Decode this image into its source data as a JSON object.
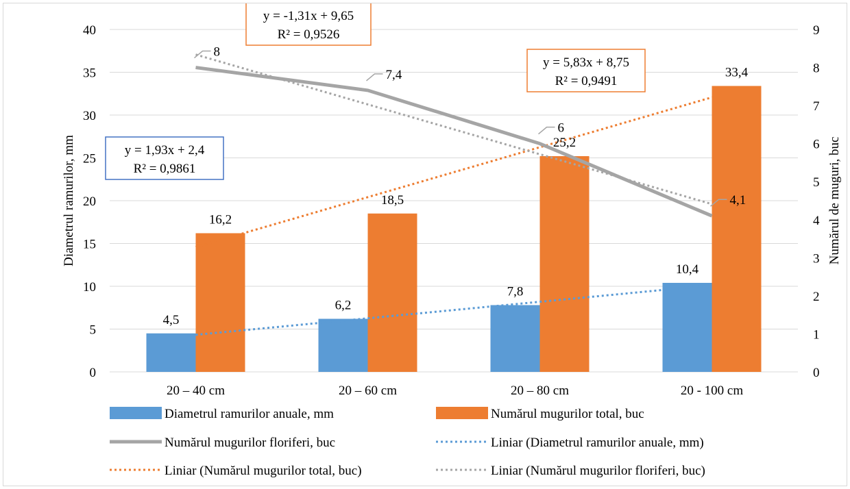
{
  "chart_data": {
    "type": "bar",
    "title": "",
    "categories": [
      "20 – 40 cm",
      "20 – 60 cm",
      "20 – 80 cm",
      "20 - 100 cm"
    ],
    "ylabel_left": "Diametrul ramurilor, mm",
    "ylabel_right": "Numărul de muguri, buc",
    "ylim_left": [
      0,
      40
    ],
    "yticks_left": [
      0,
      5,
      10,
      15,
      20,
      25,
      30,
      35,
      40
    ],
    "ylim_right": [
      0,
      9
    ],
    "yticks_right": [
      0,
      1,
      2,
      3,
      4,
      5,
      6,
      7,
      8,
      9
    ],
    "grid": true,
    "legend_position": "bottom",
    "series": [
      {
        "name": "Diametrul ramurilor anuale, mm",
        "type": "bar",
        "axis": "left",
        "color": "#5b9bd5",
        "values": [
          4.5,
          6.2,
          7.8,
          10.4
        ],
        "labels": [
          "4,5",
          "6,2",
          "7,8",
          "10,4"
        ]
      },
      {
        "name": "Numărul mugurilor total, buc",
        "type": "bar",
        "axis": "left",
        "color": "#ed7d31",
        "values": [
          16.2,
          18.5,
          25.2,
          33.4
        ],
        "labels": [
          "16,2",
          "18,5",
          "25,2",
          "33,4"
        ]
      },
      {
        "name": "Numărul mugurilor floriferi, buc",
        "type": "line",
        "axis": "right",
        "color": "#a5a5a5",
        "values": [
          8,
          7.4,
          6,
          4.1
        ],
        "labels": [
          "8",
          "7,4",
          "6",
          "4,1"
        ]
      }
    ],
    "trendlines": [
      {
        "name": "Liniar (Diametrul ramurilor anuale, mm)",
        "of": "Diametrul ramurilor anuale, mm",
        "axis": "left",
        "slope": 1.93,
        "intercept": 2.4,
        "color": "#5b9bd5",
        "equation": "y = 1,93x + 2,4",
        "r2": "R² = 0,9861"
      },
      {
        "name": "Liniar (Numărul mugurilor total, buc)",
        "of": "Numărul mugurilor total, buc",
        "axis": "left",
        "slope": 5.83,
        "intercept": 8.75,
        "color": "#ed7d31",
        "equation": "y = 5,83x + 8,75",
        "r2": "R² = 0,9491"
      },
      {
        "name": "Liniar (Numărul mugurilor floriferi, buc)",
        "of": "Numărul mugurilor floriferi, buc",
        "axis": "right",
        "slope": -1.31,
        "intercept": 9.65,
        "color": "#a5a5a5",
        "equation": "y = -1,31x + 9,65",
        "r2": "R² = 0,9526"
      }
    ]
  }
}
